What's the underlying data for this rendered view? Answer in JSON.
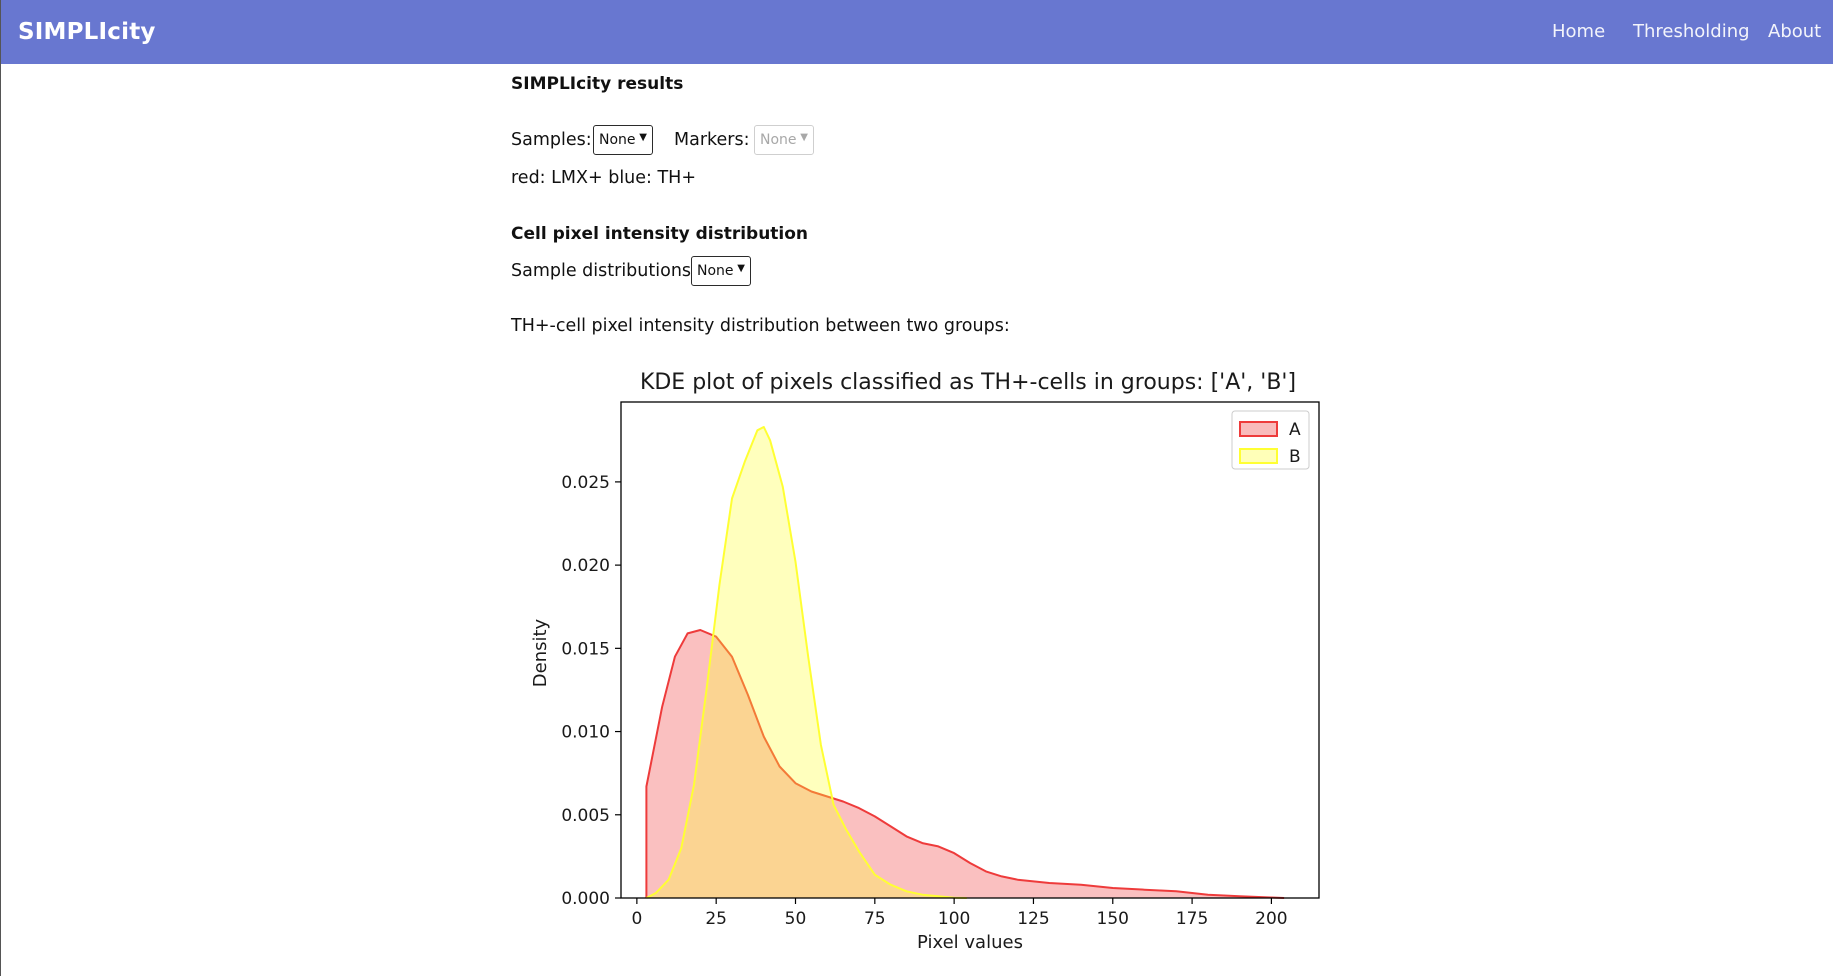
{
  "app": {
    "brand": "SIMPLIcity"
  },
  "nav": {
    "home": "Home",
    "thresholding": "Thresholding",
    "about": "About"
  },
  "results": {
    "heading": "SIMPLIcity results",
    "samples_label": "Samples:",
    "samples_value": "None",
    "markers_label": "Markers:",
    "markers_value": "None",
    "legend_text": "red: LMX+ blue: TH+"
  },
  "distribution": {
    "heading": "Cell pixel intensity distribution",
    "sample_dist_label": "Sample distributions:",
    "sample_dist_value": "None",
    "description": "TH+-cell pixel intensity distribution between two groups:"
  },
  "colors": {
    "navbar": "#6877d0",
    "series_a": "#ee3b3b",
    "series_b": "#ffff33"
  },
  "chart_data": {
    "type": "area",
    "title": "KDE plot of pixels classified as TH+-cells in groups: ['A', 'B']",
    "xlabel": "Pixel values",
    "ylabel": "Density",
    "xlim": [
      -5,
      215
    ],
    "ylim": [
      0,
      0.0298
    ],
    "xticks": [
      "0",
      "25",
      "50",
      "75",
      "100",
      "125",
      "150",
      "175",
      "200"
    ],
    "yticks": [
      "0.000",
      "0.005",
      "0.010",
      "0.015",
      "0.020",
      "0.025"
    ],
    "legend_position": "top-right",
    "grid": false,
    "series": [
      {
        "name": "A",
        "color": "#ee3b3b",
        "x": [
          3,
          3,
          8,
          12,
          16,
          20,
          25,
          30,
          35,
          40,
          45,
          50,
          55,
          60,
          65,
          70,
          75,
          80,
          85,
          90,
          95,
          100,
          105,
          110,
          115,
          120,
          125,
          130,
          140,
          150,
          160,
          170,
          180,
          190,
          200,
          204
        ],
        "y": [
          0,
          0.0067,
          0.0115,
          0.0145,
          0.0159,
          0.0161,
          0.0157,
          0.0145,
          0.0122,
          0.0097,
          0.0079,
          0.0069,
          0.0064,
          0.0061,
          0.0058,
          0.0054,
          0.0049,
          0.0043,
          0.0037,
          0.0033,
          0.0031,
          0.0027,
          0.0021,
          0.0016,
          0.0013,
          0.0011,
          0.001,
          0.0009,
          0.0008,
          0.0006,
          0.0005,
          0.0004,
          0.0002,
          0.0001,
          3e-05,
          0
        ]
      },
      {
        "name": "B",
        "color": "#ffff33",
        "x": [
          3,
          6,
          10,
          14,
          18,
          22,
          26,
          30,
          34,
          38,
          40,
          42,
          46,
          50,
          54,
          58,
          62,
          66,
          70,
          75,
          80,
          85,
          90,
          95,
          100,
          104
        ],
        "y": [
          0,
          0.0003,
          0.0011,
          0.003,
          0.0068,
          0.0126,
          0.0188,
          0.024,
          0.0262,
          0.0281,
          0.0283,
          0.0275,
          0.0247,
          0.0202,
          0.0145,
          0.0092,
          0.0056,
          0.0041,
          0.0028,
          0.0014,
          0.0008,
          0.0004,
          0.0002,
          0.0001,
          2e-05,
          0
        ]
      }
    ]
  }
}
